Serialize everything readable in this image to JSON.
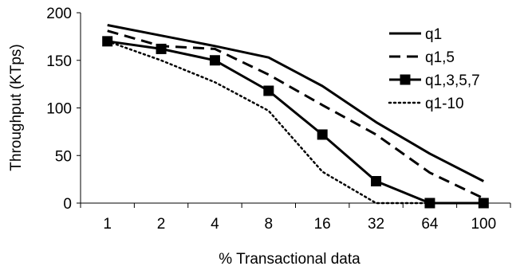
{
  "chart_data": {
    "type": "line",
    "title": "",
    "xlabel": "% Transactional data",
    "ylabel": "Throughput (KTps)",
    "categories": [
      "1",
      "2",
      "4",
      "8",
      "16",
      "32",
      "64",
      "100"
    ],
    "ylim": [
      0,
      200
    ],
    "yticks": [
      0,
      50,
      100,
      150,
      200
    ],
    "grid": false,
    "legend_position": "top-right",
    "series": [
      {
        "name": "q1",
        "style": "solid",
        "marker": "none",
        "color": "#000000",
        "values": [
          187,
          176,
          165,
          153,
          123,
          85,
          52,
          23
        ]
      },
      {
        "name": "q1,5",
        "style": "dashed",
        "marker": "none",
        "color": "#000000",
        "values": [
          181,
          165,
          162,
          135,
          103,
          72,
          32,
          5
        ]
      },
      {
        "name": "q1,3,5,7",
        "style": "solid",
        "marker": "square",
        "color": "#000000",
        "values": [
          170,
          162,
          150,
          118,
          72,
          23,
          0,
          0
        ]
      },
      {
        "name": "q1-10",
        "style": "dotted",
        "marker": "none",
        "color": "#000000",
        "values": [
          170,
          150,
          127,
          97,
          33,
          0,
          0,
          0
        ]
      }
    ]
  }
}
